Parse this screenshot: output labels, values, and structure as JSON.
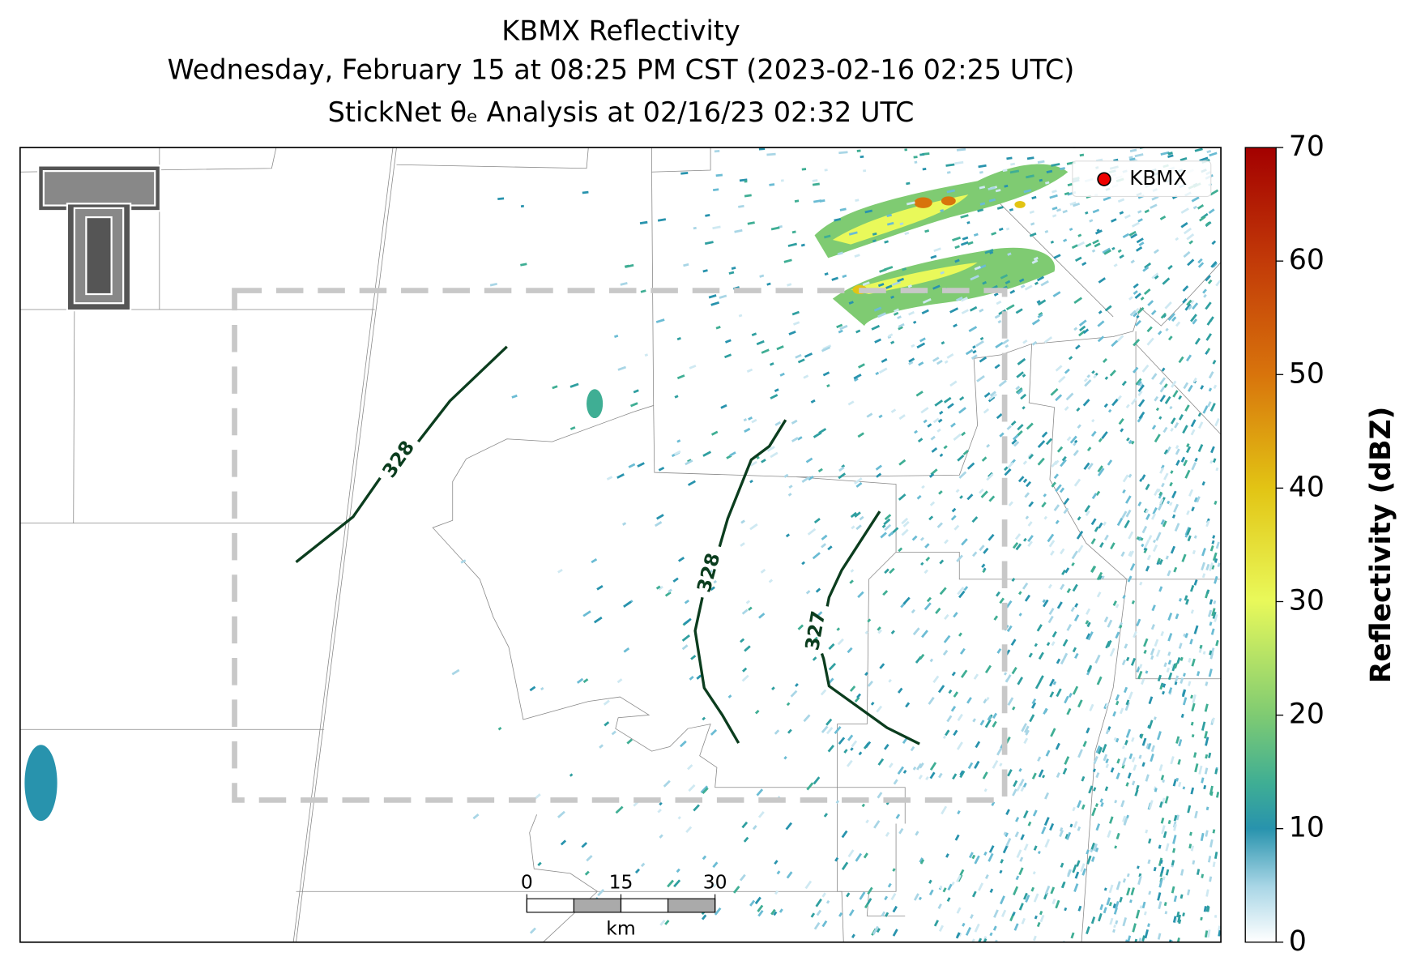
{
  "title": [
    "KBMX Reflectivity",
    "Wednesday, February 15 at 08:25 PM CST (2023-02-16 02:25 UTC)",
    "StickNet θₑ Analysis at 02/16/23 02:32 UTC"
  ],
  "legend": {
    "label": "KBMX"
  },
  "contours": [
    {
      "label": "328"
    },
    {
      "label": "328"
    },
    {
      "label": "327"
    }
  ],
  "colorbar": {
    "label": "Reflectivity (dBZ)",
    "range": [
      0,
      70
    ],
    "ticks": [
      0,
      10,
      20,
      30,
      40,
      50,
      60,
      70
    ]
  },
  "scale_bar": {
    "range": [
      0,
      30
    ],
    "ticks": [
      0,
      15,
      30
    ],
    "unit": "km"
  }
}
